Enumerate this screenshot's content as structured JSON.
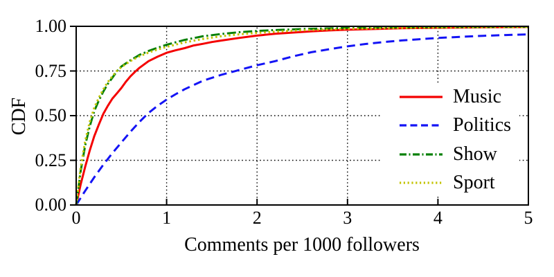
{
  "figure": {
    "background": "#ffffff",
    "text_color": "#000000"
  },
  "axes": {
    "x": {
      "label": "Comments per 1000 followers",
      "ticks": [
        "0",
        "1",
        "2",
        "3",
        "4",
        "5"
      ]
    },
    "y": {
      "label": "CDF",
      "ticks": [
        "0.00",
        "0.25",
        "0.50",
        "0.75",
        "1.00"
      ]
    }
  },
  "legend": {
    "entries": [
      {
        "label": "Music",
        "color": "#f40000",
        "style": "solid"
      },
      {
        "label": "Politics",
        "color": "#1414f5",
        "style": "dashed"
      },
      {
        "label": "Show",
        "color": "#068006",
        "style": "dashdot"
      },
      {
        "label": "Sport",
        "color": "#c3c300",
        "style": "dotted"
      }
    ]
  },
  "chart_data": {
    "type": "line",
    "title": "",
    "xlabel": "Comments per 1000 followers",
    "ylabel": "CDF",
    "xlim": [
      0,
      5
    ],
    "ylim": [
      0,
      1
    ],
    "xticks": [
      0,
      1,
      2,
      3,
      4,
      5
    ],
    "yticks": [
      0,
      0.25,
      0.5,
      0.75,
      1
    ],
    "grid": true,
    "grid_style": "dotted",
    "grid_color": "#000000",
    "legend_position": "center-right",
    "series": [
      {
        "name": "Music",
        "color": "#f40000",
        "style": "solid",
        "points": [
          [
            0,
            0
          ],
          [
            0.05,
            0.115
          ],
          [
            0.1,
            0.215
          ],
          [
            0.15,
            0.305
          ],
          [
            0.2,
            0.385
          ],
          [
            0.25,
            0.45
          ],
          [
            0.3,
            0.51
          ],
          [
            0.35,
            0.555
          ],
          [
            0.4,
            0.595
          ],
          [
            0.45,
            0.625
          ],
          [
            0.5,
            0.655
          ],
          [
            0.55,
            0.69
          ],
          [
            0.6,
            0.72
          ],
          [
            0.65,
            0.745
          ],
          [
            0.7,
            0.768
          ],
          [
            0.8,
            0.805
          ],
          [
            0.9,
            0.83
          ],
          [
            1.0,
            0.852
          ],
          [
            1.1,
            0.866
          ],
          [
            1.2,
            0.878
          ],
          [
            1.3,
            0.893
          ],
          [
            1.4,
            0.902
          ],
          [
            1.5,
            0.912
          ],
          [
            1.6,
            0.92
          ],
          [
            1.8,
            0.935
          ],
          [
            2.0,
            0.948
          ],
          [
            2.2,
            0.958
          ],
          [
            2.4,
            0.965
          ],
          [
            2.6,
            0.972
          ],
          [
            2.8,
            0.977
          ],
          [
            3.0,
            0.981
          ],
          [
            3.3,
            0.985
          ],
          [
            3.6,
            0.989
          ],
          [
            4.0,
            0.992
          ],
          [
            4.5,
            0.994
          ],
          [
            5.0,
            0.996
          ]
        ]
      },
      {
        "name": "Politics",
        "color": "#1414f5",
        "style": "dashed",
        "points": [
          [
            0,
            0
          ],
          [
            0.1,
            0.08
          ],
          [
            0.2,
            0.155
          ],
          [
            0.3,
            0.225
          ],
          [
            0.4,
            0.29
          ],
          [
            0.5,
            0.35
          ],
          [
            0.6,
            0.41
          ],
          [
            0.7,
            0.465
          ],
          [
            0.8,
            0.515
          ],
          [
            0.9,
            0.555
          ],
          [
            1.0,
            0.59
          ],
          [
            1.1,
            0.62
          ],
          [
            1.2,
            0.648
          ],
          [
            1.4,
            0.695
          ],
          [
            1.6,
            0.728
          ],
          [
            1.8,
            0.755
          ],
          [
            2.0,
            0.782
          ],
          [
            2.2,
            0.805
          ],
          [
            2.4,
            0.832
          ],
          [
            2.6,
            0.855
          ],
          [
            2.8,
            0.872
          ],
          [
            3.0,
            0.888
          ],
          [
            3.2,
            0.901
          ],
          [
            3.4,
            0.912
          ],
          [
            3.6,
            0.921
          ],
          [
            3.8,
            0.928
          ],
          [
            4.0,
            0.935
          ],
          [
            4.25,
            0.941
          ],
          [
            4.5,
            0.947
          ],
          [
            4.75,
            0.951
          ],
          [
            5.0,
            0.955
          ]
        ]
      },
      {
        "name": "Show",
        "color": "#068006",
        "style": "dashdot",
        "points": [
          [
            0,
            0
          ],
          [
            0.05,
            0.19
          ],
          [
            0.1,
            0.335
          ],
          [
            0.15,
            0.44
          ],
          [
            0.2,
            0.525
          ],
          [
            0.25,
            0.585
          ],
          [
            0.3,
            0.635
          ],
          [
            0.35,
            0.678
          ],
          [
            0.4,
            0.712
          ],
          [
            0.45,
            0.748
          ],
          [
            0.5,
            0.775
          ],
          [
            0.6,
            0.81
          ],
          [
            0.7,
            0.84
          ],
          [
            0.8,
            0.862
          ],
          [
            0.9,
            0.88
          ],
          [
            1.0,
            0.897
          ],
          [
            1.2,
            0.924
          ],
          [
            1.4,
            0.944
          ],
          [
            1.6,
            0.957
          ],
          [
            1.8,
            0.967
          ],
          [
            2.0,
            0.974
          ],
          [
            2.2,
            0.979
          ],
          [
            2.5,
            0.985
          ],
          [
            3.0,
            0.991
          ],
          [
            3.5,
            0.994
          ],
          [
            4.0,
            0.996
          ],
          [
            4.5,
            0.997
          ],
          [
            5.0,
            0.998
          ]
        ]
      },
      {
        "name": "Sport",
        "color": "#c3c300",
        "style": "dotted",
        "points": [
          [
            0,
            0
          ],
          [
            0.05,
            0.21
          ],
          [
            0.1,
            0.36
          ],
          [
            0.15,
            0.465
          ],
          [
            0.2,
            0.545
          ],
          [
            0.25,
            0.6
          ],
          [
            0.3,
            0.648
          ],
          [
            0.35,
            0.688
          ],
          [
            0.4,
            0.72
          ],
          [
            0.45,
            0.75
          ],
          [
            0.5,
            0.772
          ],
          [
            0.6,
            0.806
          ],
          [
            0.7,
            0.832
          ],
          [
            0.8,
            0.853
          ],
          [
            0.9,
            0.87
          ],
          [
            1.0,
            0.885
          ],
          [
            1.2,
            0.91
          ],
          [
            1.4,
            0.929
          ],
          [
            1.6,
            0.944
          ],
          [
            1.8,
            0.955
          ],
          [
            2.0,
            0.963
          ],
          [
            2.2,
            0.97
          ],
          [
            2.5,
            0.978
          ],
          [
            3.0,
            0.986
          ],
          [
            3.5,
            0.99
          ],
          [
            4.0,
            0.993
          ],
          [
            4.5,
            0.995
          ],
          [
            5.0,
            0.996
          ]
        ]
      }
    ]
  }
}
